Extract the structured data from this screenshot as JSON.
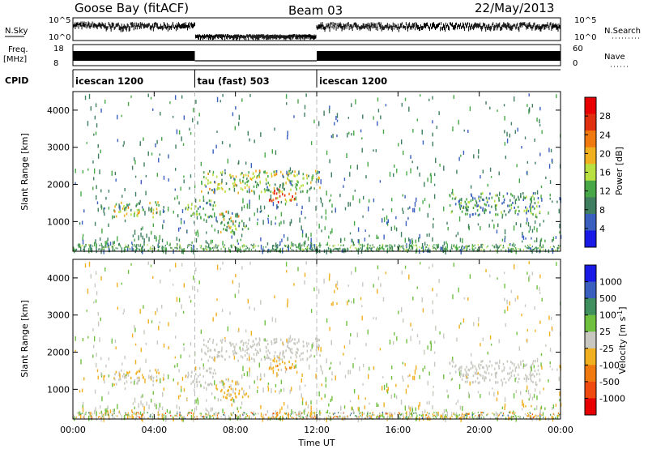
{
  "header": {
    "station": "Goose Bay (fitACF)",
    "beam": "Beam 03",
    "date": "22/May/2013"
  },
  "noise_panel": {
    "left_label": "N.Sky",
    "right_label": "N.Search",
    "left_ticks": [
      "10^5",
      "10^0"
    ],
    "right_ticks": [
      "10^5",
      "10^0"
    ]
  },
  "freq_panel": {
    "left_label_1": "Freq.",
    "left_label_2": "[MHz]",
    "right_label": "Nave",
    "left_ticks": [
      "18",
      "8"
    ],
    "right_ticks": [
      "60",
      "0"
    ]
  },
  "cpid_panel": {
    "label": "CPID",
    "segments": [
      {
        "start": 0,
        "end": 6,
        "name": "icescan 1200"
      },
      {
        "start": 6,
        "end": 12,
        "name": "tau (fast) 503"
      },
      {
        "start": 12,
        "end": 24,
        "name": "icescan 1200"
      }
    ]
  },
  "x_axis": {
    "label": "Time UT",
    "ticks": [
      "00:00",
      "04:00",
      "08:00",
      "12:00",
      "16:00",
      "20:00",
      "00:00"
    ]
  },
  "colors": {
    "power": [
      "#1a1ae6",
      "#3a5fbf",
      "#3f7f5f",
      "#48a848",
      "#b8e040",
      "#f0b020",
      "#f07a10",
      "#e03010",
      "#e80000"
    ],
    "velocity": [
      "#e80000",
      "#f04a10",
      "#f07a10",
      "#f0b020",
      "#c8c8c0",
      "#70c040",
      "#3f8f5f",
      "#3a5fbf",
      "#1a1ae6"
    ]
  },
  "chart_data": [
    {
      "type": "heatmap",
      "title": "",
      "xlabel": "Time UT",
      "ylabel": "Slant Range [km]",
      "xlim": [
        0,
        24
      ],
      "ylim": [
        200,
        4500
      ],
      "yticks": [
        "1000",
        "2000",
        "3000",
        "4000"
      ],
      "colorbar": {
        "label": "Power [dB]",
        "ticks": [
          "4",
          "8",
          "12",
          "16",
          "20",
          "24",
          "28"
        ],
        "range": [
          0,
          30
        ]
      },
      "features": [
        {
          "t": [
            2.0,
            4.2
          ],
          "r": [
            1150,
            1550
          ],
          "value": 14
        },
        {
          "t": [
            5.5,
            7.0
          ],
          "r": [
            1150,
            1600
          ],
          "value": 10
        },
        {
          "t": [
            6.2,
            12.2
          ],
          "r": [
            1800,
            2400
          ],
          "value": 13
        },
        {
          "t": [
            9.6,
            11.0
          ],
          "r": [
            1550,
            1900
          ],
          "value": 24
        },
        {
          "t": [
            7.2,
            8.6
          ],
          "r": [
            700,
            1300
          ],
          "value": 14
        },
        {
          "t": [
            18.5,
            23.0
          ],
          "r": [
            1200,
            1800
          ],
          "value": 9
        }
      ]
    },
    {
      "type": "heatmap",
      "title": "",
      "xlabel": "Time UT",
      "ylabel": "Slant Range [km]",
      "xlim": [
        0,
        24
      ],
      "ylim": [
        200,
        4500
      ],
      "yticks": [
        "1000",
        "2000",
        "3000",
        "4000"
      ],
      "colorbar": {
        "label": "Velocity [m s-1]",
        "ticks": [
          "1000",
          "500",
          "100",
          "25",
          "-25",
          "-100",
          "-500",
          "-1000"
        ],
        "range": [
          -1000,
          1000
        ]
      },
      "features": [
        {
          "t": [
            2.0,
            4.2
          ],
          "r": [
            1150,
            1550
          ],
          "value": -120
        },
        {
          "t": [
            5.5,
            7.0
          ],
          "r": [
            1150,
            1600
          ],
          "value": -80
        },
        {
          "t": [
            6.2,
            12.2
          ],
          "r": [
            1800,
            2400
          ],
          "value": 0
        },
        {
          "t": [
            9.6,
            11.0
          ],
          "r": [
            1550,
            1900
          ],
          "value": -300
        },
        {
          "t": [
            7.2,
            8.6
          ],
          "r": [
            700,
            1300
          ],
          "value": -150
        },
        {
          "t": [
            18.5,
            23.0
          ],
          "r": [
            1200,
            1800
          ],
          "value": 0
        }
      ]
    }
  ]
}
